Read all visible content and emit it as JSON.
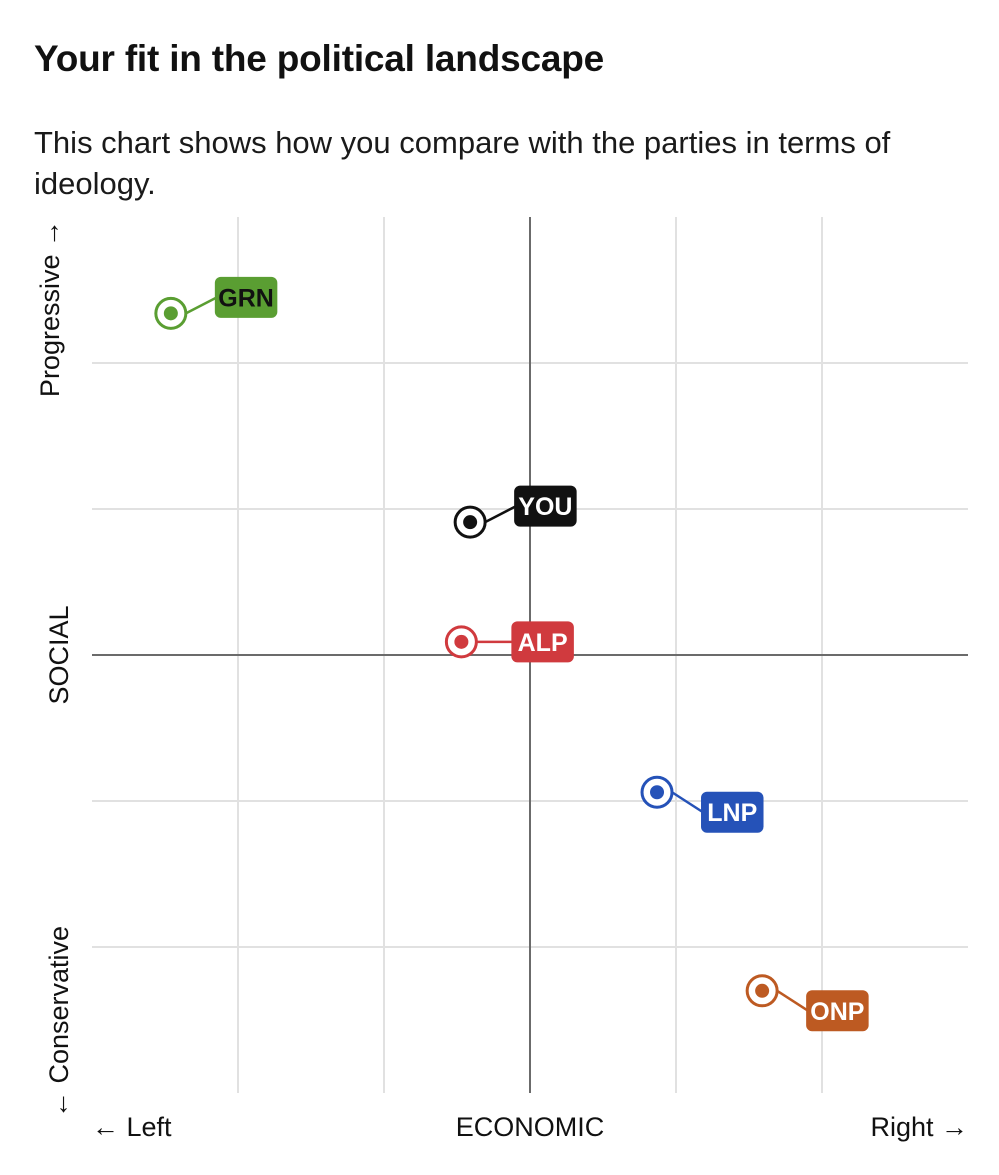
{
  "title": "Your fit in the political landscape",
  "subtitle": "This chart shows how you compare with the parties in terms of ideology.",
  "chart_data": {
    "type": "scatter",
    "x_axis": {
      "label": "ECONOMIC",
      "left_label": "← Left",
      "right_label": "Right →",
      "range": [
        -3,
        3
      ],
      "gridlines": [
        -2,
        -1,
        0,
        1,
        2
      ]
    },
    "y_axis": {
      "label": "SOCIAL",
      "top_label": "Progressive →",
      "bottom_label": "← Conservative",
      "range": [
        -3,
        3
      ],
      "gridlines": [
        -2,
        -1,
        0,
        1,
        2
      ]
    },
    "grid": true,
    "points": [
      {
        "name": "GRN",
        "x": -2.46,
        "y": 2.34,
        "color": "#5a9e32",
        "text_color": "#111111",
        "label_position": "upper-right"
      },
      {
        "name": "YOU",
        "x": -0.41,
        "y": 0.91,
        "color": "#111111",
        "text_color": "#ffffff",
        "label_position": "upper-right"
      },
      {
        "name": "ALP",
        "x": -0.47,
        "y": 0.09,
        "color": "#d03a3e",
        "text_color": "#ffffff",
        "label_position": "right"
      },
      {
        "name": "LNP",
        "x": 0.87,
        "y": -0.94,
        "color": "#2552b8",
        "text_color": "#ffffff",
        "label_position": "lower-right"
      },
      {
        "name": "ONP",
        "x": 1.59,
        "y": -2.3,
        "color": "#bd5a22",
        "text_color": "#ffffff",
        "label_position": "lower-right"
      }
    ]
  }
}
